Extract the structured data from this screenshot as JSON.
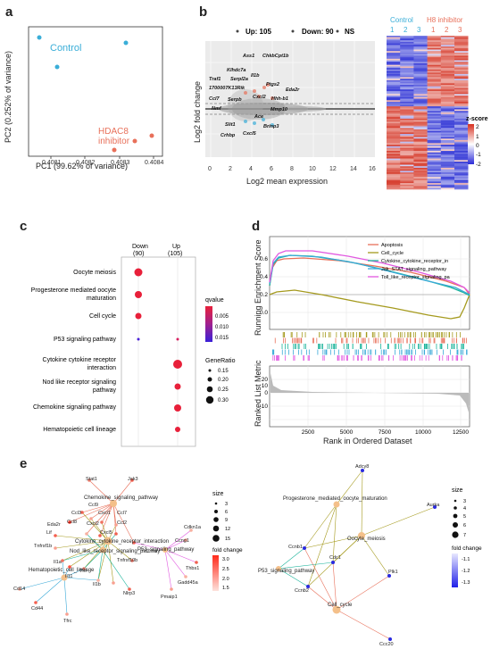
{
  "panels": {
    "a": {
      "label": "a",
      "xlabel": "PC1 (99.62% of variance)",
      "ylabel": "PC2 (0.252% of variance)",
      "xticks": [
        "0.4081",
        "0.4082",
        "0.4083",
        "0.4084"
      ],
      "control_label": "Control",
      "inhibitor_label": "HDAC8\ninhibitor",
      "inhibitor_line1": "HDAC8",
      "inhibitor_line2": "inhibitor",
      "colors": {
        "control": "#3aaed8",
        "inhibitor": "#e8705a"
      }
    },
    "b": {
      "label": "b",
      "legend": {
        "up": "Up: 105",
        "down": "Down: 90",
        "ns": "NS"
      },
      "xlabel": "Log2 mean expression",
      "ylabel": "Log2 fold change",
      "xticks": [
        "0",
        "2",
        "4",
        "6",
        "8",
        "10",
        "12",
        "14",
        "16"
      ],
      "genes": [
        "Ass1",
        "ChkbCpt1b",
        "Klhdc7a",
        "Traf1",
        "Serpl2a",
        "Il1b",
        "Ptgs2",
        "1700007K13Rik",
        "Eda2r",
        "Ccl7",
        "Serpb",
        "Cxcl2",
        "Hhh-b1",
        "Nmf",
        "Mmp10",
        "Ace",
        "Slit1",
        "Brinp3",
        "Crhbp",
        "Cxcl5"
      ],
      "heatmap": {
        "control_label": "Control",
        "inhibitor_label": "H8 inhibitor",
        "columns": [
          "1",
          "2",
          "3",
          "1",
          "2",
          "3"
        ],
        "zscore_title": "z-score",
        "zscore_ticks": [
          "2",
          "1",
          "0",
          "-1",
          "-2"
        ]
      }
    },
    "c": {
      "label": "c",
      "columns": [
        {
          "name": "Down",
          "count": "(90)"
        },
        {
          "name": "Up",
          "count": "(105)"
        }
      ],
      "pathways": [
        "Oocyte meiosis",
        "Progesterone mediated oocyte\nmaturation",
        "Cell cycle",
        "P53 signaling pathway",
        "Cytokine cytokine receptor\ninteraction",
        "Nod like receptor signaling\npathway",
        "Chemokine signaling pathway",
        "Hematopoietic cell lineage"
      ],
      "qvalue_title": "qvalue",
      "qvalue_ticks": [
        "0.005",
        "0.010",
        "0.015"
      ],
      "generatio_title": "GeneRatio",
      "generatio_ticks": [
        "0.15",
        "0.20",
        "0.25",
        "0.30"
      ]
    },
    "d": {
      "label": "d",
      "ylabel_top": "Running Enrichment Score",
      "ylabel_bottom": "Ranked List Metric",
      "xlabel": "Rank in Ordered Dataset",
      "yticks_top": [
        "0.6",
        "0.4",
        "0.2",
        "0.0"
      ],
      "yticks_bottom": [
        "20",
        "10",
        "0",
        "-10"
      ],
      "xticks": [
        "2500",
        "5000",
        "7500",
        "10000",
        "12500"
      ],
      "legend": [
        {
          "name": "Apoptosis",
          "color": "#e8705a"
        },
        {
          "name": "Cell_cycle",
          "color": "#a59a1e"
        },
        {
          "name": "Cytokine_cytokine_receptor_in",
          "color": "#19b39a"
        },
        {
          "name": "Jak_STAT_signaling_pathway",
          "color": "#3aa9d8"
        },
        {
          "name": "Toll_like_receptor_signaling_pa",
          "color": "#e158e0"
        }
      ]
    },
    "e": {
      "label": "e",
      "size_title": "size",
      "size_ticks_left": [
        "3",
        "6",
        "9",
        "12",
        "15"
      ],
      "size_ticks_right": [
        "3",
        "4",
        "5",
        "6",
        "7"
      ],
      "fc_title": "fold change",
      "fc_ticks_left": [
        "3.0",
        "2.5",
        "2.0",
        "1.5"
      ],
      "fc_ticks_right": [
        "-1.1",
        "-1.2",
        "-1.3"
      ],
      "left_pathways": [
        "Chemokine_signaling_pathway",
        "Cytokine_cytokine_receptor_interaction",
        "Nod_like_receptor_signaling_pathway",
        "Hematopoietic_cell_lineage",
        "P53_signaling_pathway"
      ],
      "left_genes": [
        "Stat1",
        "Jak3",
        "Ccl3",
        "Ccl9",
        "Ccl8",
        "Cxcl1",
        "Ccl7",
        "Eda2r",
        "Cxcl2",
        "Ccl2",
        "Lif",
        "Cxcl5",
        "Tnfrsf1b",
        "Tnfrsf10b",
        "Il1a",
        "Il11",
        "Tnf",
        "Il1b",
        "Nlrp3",
        "Cd14",
        "Cd44",
        "Tfrc",
        "Cdkn1a",
        "Ccng1",
        "Thbs1",
        "Gadd45a",
        "Pmaip1"
      ],
      "right_pathways": [
        "Progesterone_mediated_oocyte_maturation",
        "Oocyte_meiosis",
        "P53_signaling_pathway",
        "Cell_cycle"
      ],
      "right_genes": [
        "Adcy8",
        "Aurka",
        "Ccnb1",
        "Cdc1",
        "Ccnb2",
        "Plk1",
        "Ccc20"
      ]
    }
  }
}
